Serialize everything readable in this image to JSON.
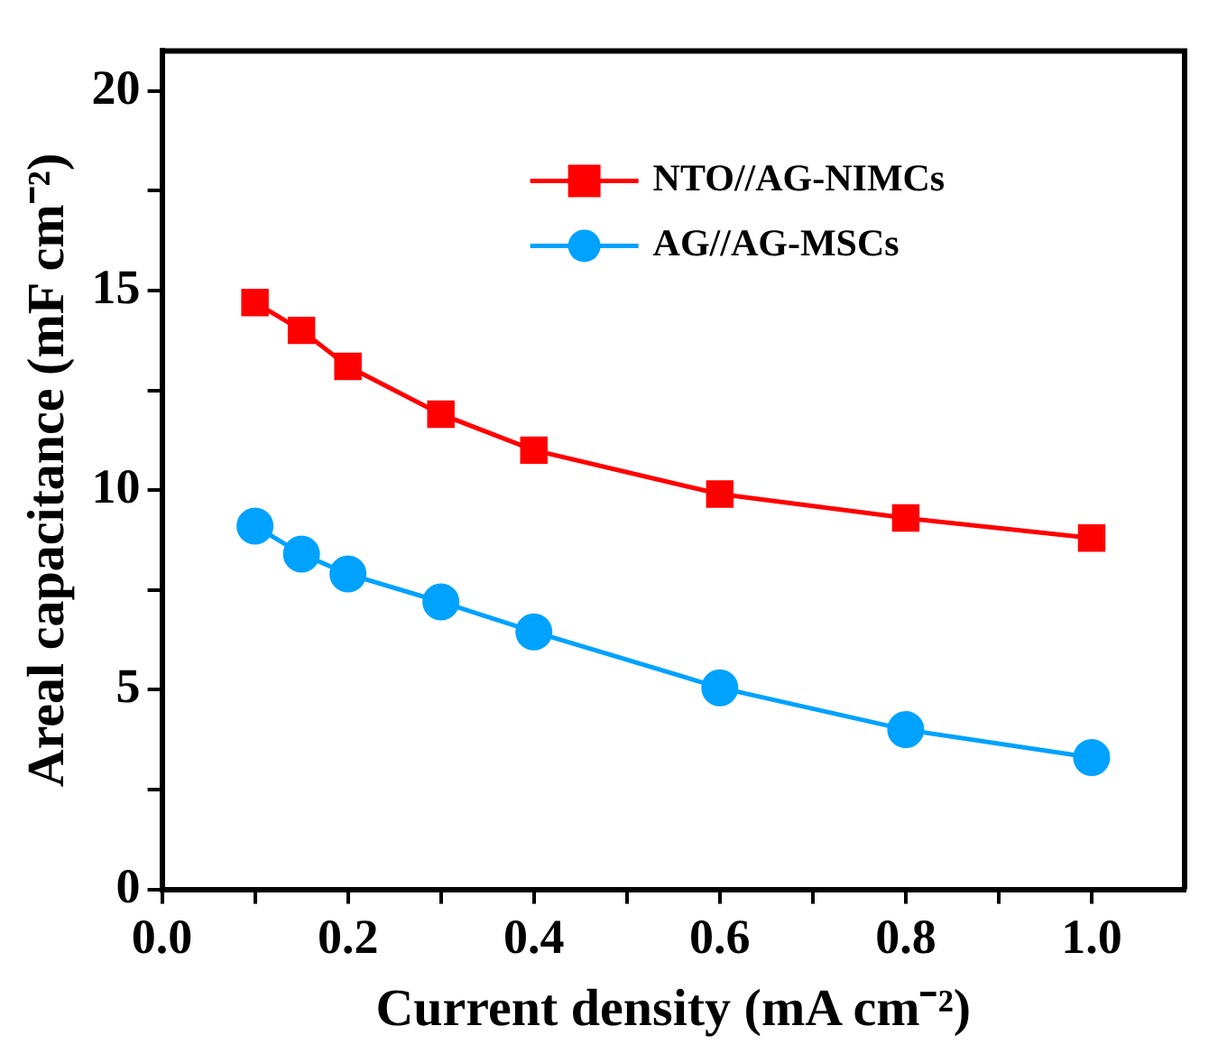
{
  "chart_data": {
    "type": "line",
    "xlabel": "Current density (mA cm⁻²)",
    "ylabel": "Areal capacitance (mF cm⁻²)",
    "x": [
      0.1,
      0.15,
      0.2,
      0.3,
      0.4,
      0.6,
      0.8,
      1.0
    ],
    "series": [
      {
        "name": "NTO//AG-NIMCs",
        "color": "#ff0000",
        "marker": "square",
        "values": [
          14.7,
          14.0,
          13.1,
          11.9,
          11.0,
          9.9,
          9.3,
          8.8
        ]
      },
      {
        "name": "AG//AG-MSCs",
        "color": "#00a2ff",
        "marker": "circle",
        "values": [
          9.1,
          8.4,
          7.9,
          7.2,
          6.45,
          5.05,
          4.0,
          3.3
        ]
      }
    ],
    "xlim": [
      0,
      1.1
    ],
    "ylim": [
      0,
      21
    ],
    "xticks": [
      {
        "value": 0,
        "label": "0.0"
      },
      {
        "value": 0.1,
        "label": null
      },
      {
        "value": 0.2,
        "label": "0.2"
      },
      {
        "value": 0.3,
        "label": null
      },
      {
        "value": 0.4,
        "label": "0.4"
      },
      {
        "value": 0.5,
        "label": null
      },
      {
        "value": 0.6,
        "label": "0.6"
      },
      {
        "value": 0.7,
        "label": null
      },
      {
        "value": 0.8,
        "label": "0.8"
      },
      {
        "value": 0.9,
        "label": null
      },
      {
        "value": 1.0,
        "label": "1.0"
      }
    ],
    "yticks": [
      0,
      {
        "value": 2.5,
        "label": null
      },
      5,
      {
        "value": 7.5,
        "label": null
      },
      10,
      {
        "value": 12.5,
        "label": null
      },
      15,
      {
        "value": 17.5,
        "label": null
      },
      20
    ],
    "grid": false,
    "legend": "top right",
    "line_style": "solid"
  }
}
